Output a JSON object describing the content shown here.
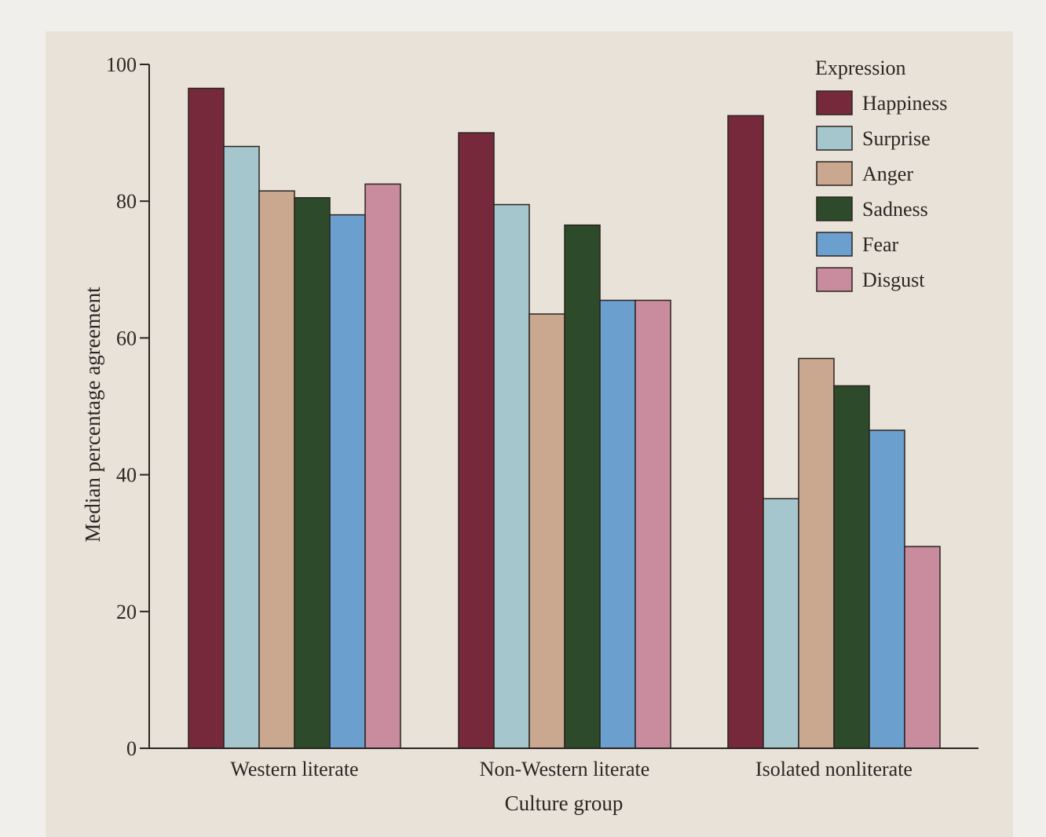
{
  "chart_data": {
    "type": "bar",
    "categories": [
      "Western literate",
      "Non-Western literate",
      "Isolated nonliterate"
    ],
    "series": [
      {
        "name": "Happiness",
        "color": "#76293a",
        "values": [
          96.5,
          90,
          92.5
        ]
      },
      {
        "name": "Surprise",
        "color": "#a6c6ce",
        "values": [
          88,
          79.5,
          36.5
        ]
      },
      {
        "name": "Anger",
        "color": "#c9a88f",
        "values": [
          81.5,
          63.5,
          57
        ]
      },
      {
        "name": "Sadness",
        "color": "#2d4a2b",
        "values": [
          80.5,
          76.5,
          53
        ]
      },
      {
        "name": "Fear",
        "color": "#6b9fcd",
        "values": [
          78,
          65.5,
          46.5
        ]
      },
      {
        "name": "Disgust",
        "color": "#c98b9e",
        "values": [
          82.5,
          65.5,
          29.5
        ]
      }
    ],
    "title": "",
    "xlabel": "Culture group",
    "ylabel": "Median percentage agreement",
    "ylim": [
      0,
      100
    ],
    "yticks": [
      0,
      20,
      40,
      60,
      80,
      100
    ],
    "legend_title": "Expression",
    "legend_position": "top-right",
    "grid": false,
    "background_color": "#e9e2d8"
  }
}
